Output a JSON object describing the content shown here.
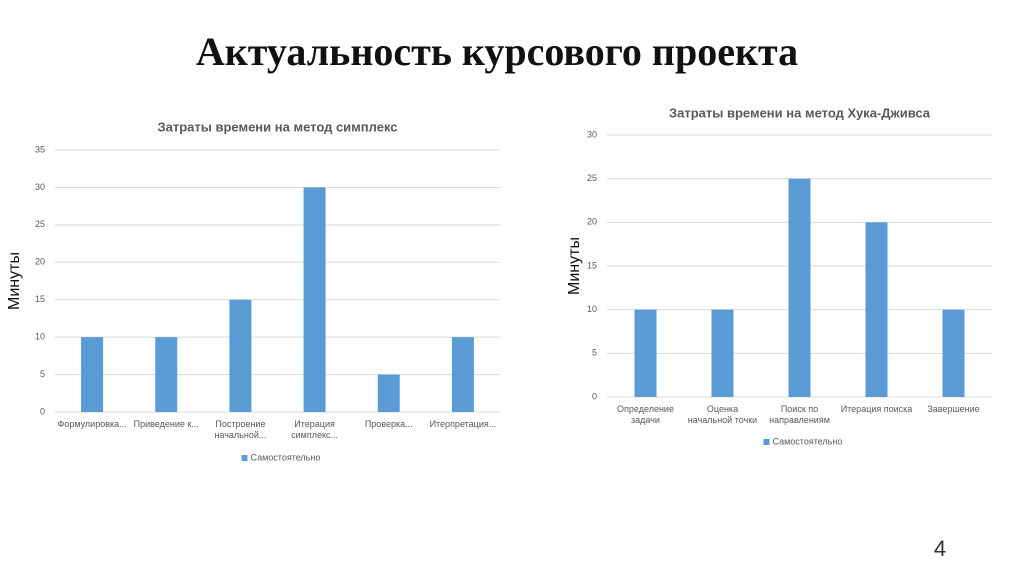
{
  "title": "Актуальность курсового проекта",
  "page_number": "4",
  "chart_data": [
    {
      "type": "bar",
      "title": "Затраты времени на метод симплекс",
      "y_label": "Минуты",
      "categories": [
        "Формулировка...",
        "Приведение к...",
        "Построение начальной...",
        "Итерация симплекс...",
        "Проверка...",
        "Итерпретация..."
      ],
      "series": [
        {
          "name": "Самостоятельно",
          "color": "#5b9bd5",
          "values": [
            10,
            10,
            15,
            30,
            5,
            10
          ]
        }
      ],
      "ylim": [
        0,
        35
      ],
      "yticks": [
        0,
        5,
        10,
        15,
        20,
        25,
        30,
        35
      ],
      "grid": true,
      "legend": "bottom"
    },
    {
      "type": "bar",
      "title": "Затраты времени на метод Хука-Дживса",
      "y_label": "Минуты",
      "categories": [
        "Определение задачи",
        "Оценка начальной точки",
        "Поиск по направлениям",
        "Итерация поиска",
        "Завершение"
      ],
      "series": [
        {
          "name": "Самостоятельно",
          "color": "#5b9bd5",
          "values": [
            10,
            10,
            25,
            20,
            10
          ]
        }
      ],
      "ylim": [
        0,
        30
      ],
      "yticks": [
        0,
        5,
        10,
        15,
        20,
        25,
        30
      ],
      "grid": true,
      "legend": "bottom"
    }
  ]
}
